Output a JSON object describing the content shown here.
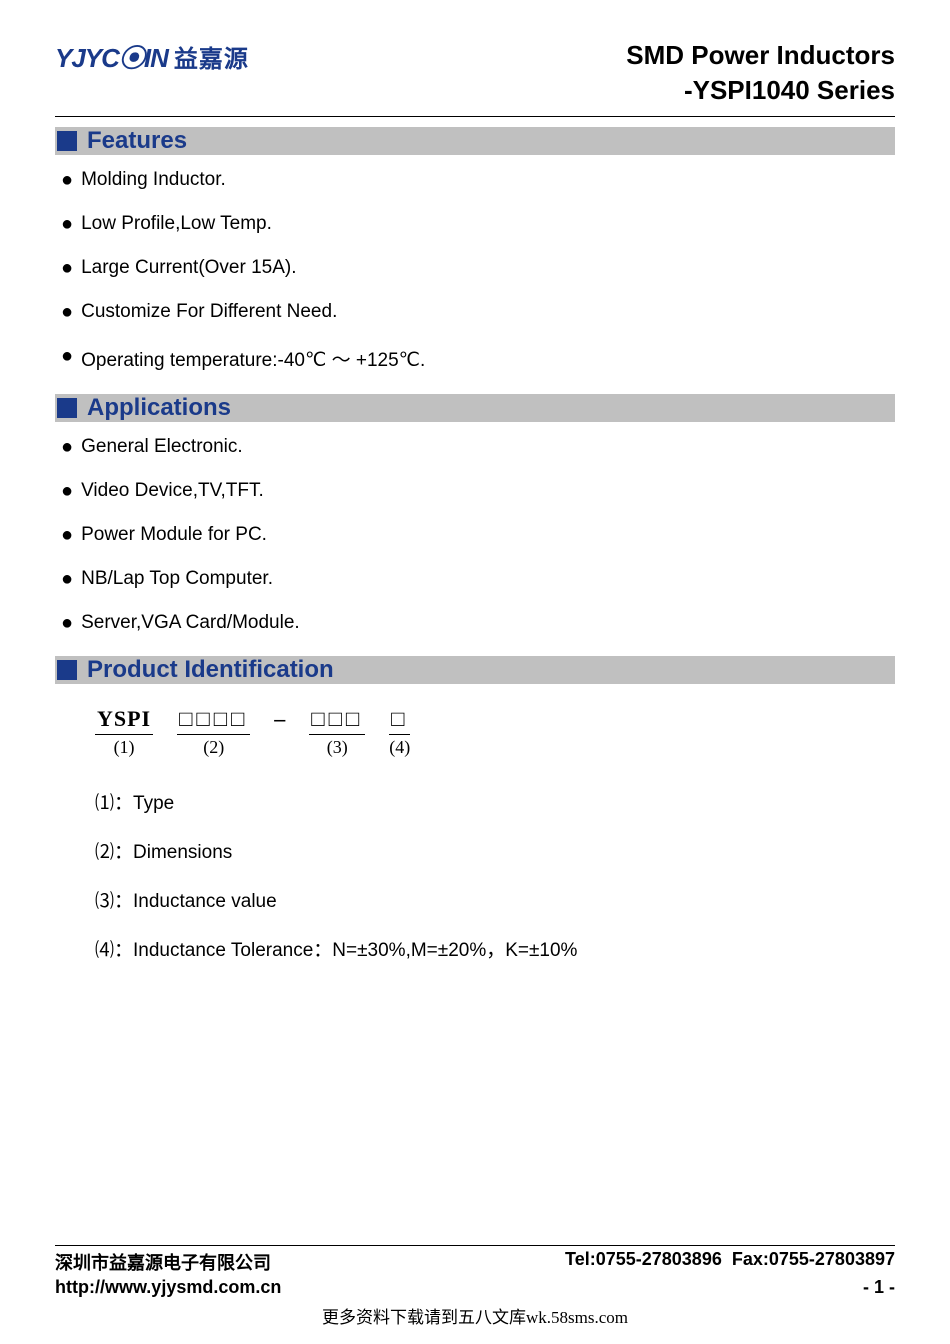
{
  "colors": {
    "brand_blue": "#1a3a8a",
    "section_bg": "#c0c0c0",
    "text": "#000000",
    "page_bg": "#ffffff"
  },
  "header": {
    "logo_text": "YJYC⦿IN",
    "logo_cn": "益嘉源",
    "title_line1": "SMD Power Inductors",
    "title_line2": "-YSPI1040 Series"
  },
  "sections": {
    "features": {
      "title": "Features",
      "items": [
        "Molding Inductor.",
        "Low Profile,Low Temp.",
        "Large Current(Over 15A).",
        "Customize For Different Need.",
        "Operating temperature:-40℃ ～ +125℃."
      ]
    },
    "applications": {
      "title": "Applications",
      "items": [
        "General Electronic.",
        "Video Device,TV,TFT.",
        "Power Module for PC.",
        "NB/Lap Top Computer.",
        "Server,VGA Card/Module."
      ]
    },
    "product_id": {
      "title": "Product Identification",
      "scheme": {
        "parts": [
          {
            "top": "YSPI",
            "sub": "(1)"
          },
          {
            "top": "□□□□",
            "sub": "(2)"
          },
          {
            "dash": "–"
          },
          {
            "top": "□□□",
            "sub": "(3)"
          },
          {
            "top": "□",
            "sub": "(4)"
          }
        ]
      },
      "legend": [
        {
          "num": "⑴",
          "text": "：Type"
        },
        {
          "num": "⑵",
          "text": "：Dimensions"
        },
        {
          "num": "⑶",
          "text": "：Inductance value"
        },
        {
          "num": "⑷",
          "text": "：Inductance Tolerance：N=±30%,M=±20%，K=±10%"
        }
      ]
    }
  },
  "footer": {
    "company": "深圳市益嘉源电子有限公司",
    "tel": "Tel:0755-27803896",
    "fax": "Fax:0755-27803897",
    "url": "http://www.yjysmd.com.cn",
    "page": "- 1 -"
  },
  "watermark": "更多资料下载请到五八文库wk.58sms.com"
}
